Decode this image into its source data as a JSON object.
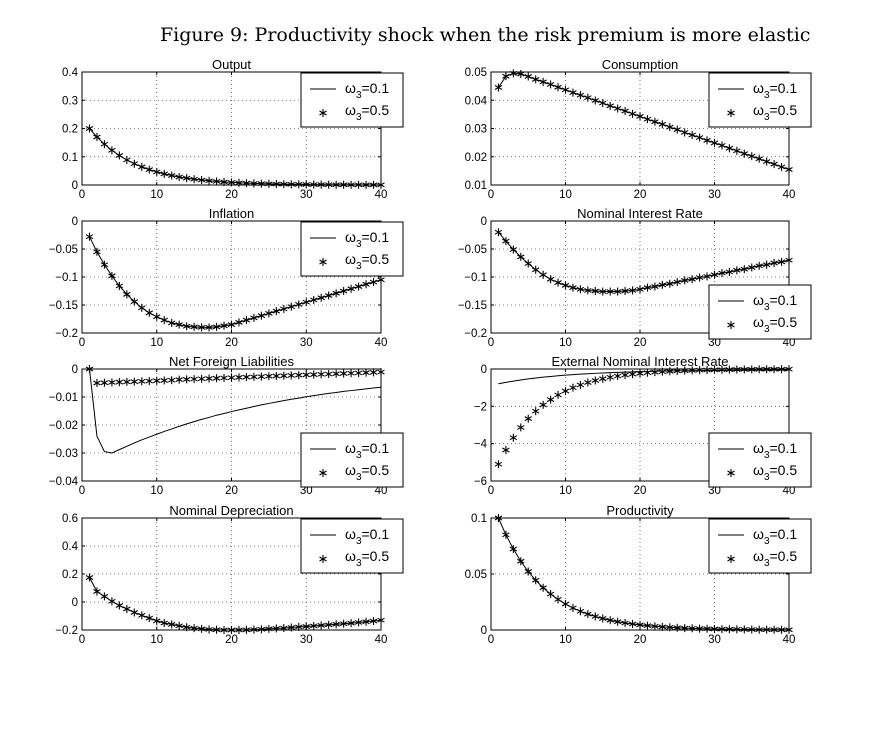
{
  "figure_title": "Figure 9: Productivity shock when the risk premium is more elastic",
  "legend_entries": [
    {
      "greek": "ω",
      "sub": "3",
      "value": "=0.1",
      "style": "line"
    },
    {
      "greek": "ω",
      "sub": "3",
      "value": "=0.5",
      "style": "star"
    }
  ],
  "chart_data": [
    {
      "type": "line",
      "title": "Output",
      "xlim": [
        0,
        40
      ],
      "ylim": [
        0,
        0.4
      ],
      "legend": "top-right",
      "grid": true,
      "xticks": [
        0,
        10,
        20,
        30,
        40
      ],
      "xtick_labels": [
        "0",
        "10",
        "20",
        "30",
        "40"
      ],
      "yticks": [
        0,
        0.1,
        0.2,
        0.3,
        0.4
      ],
      "ytick_labels": [
        "0",
        "0.1",
        "0.2",
        "0.3",
        "0.4"
      ],
      "series": [
        {
          "name": "ω3=0.1",
          "values": [
            0.2,
            0.17,
            0.1445,
            0.1228,
            0.1044,
            0.0887,
            0.0754,
            0.0641,
            0.0545,
            0.0463,
            0.0394,
            0.0335,
            0.0284,
            0.0242,
            0.0206,
            0.0175,
            0.0149,
            0.0126,
            0.0107,
            0.0091,
            0.0078,
            0.0066,
            0.0056,
            0.0048,
            0.004,
            0.0034,
            0.0029,
            0.0025,
            0.0021,
            0.0018,
            0.0015,
            0.0013,
            0.0011,
            0.0009,
            0.0008,
            0.0007,
            0.0006,
            0.0005,
            0.0004,
            0.0004
          ]
        },
        {
          "name": "ω3=0.5",
          "values": [
            0.2,
            0.17,
            0.1445,
            0.1228,
            0.1044,
            0.0887,
            0.0754,
            0.0641,
            0.0545,
            0.0463,
            0.0394,
            0.0335,
            0.0284,
            0.0242,
            0.0206,
            0.0175,
            0.0149,
            0.0126,
            0.0107,
            0.0091,
            0.0078,
            0.0066,
            0.0056,
            0.0048,
            0.004,
            0.0034,
            0.0029,
            0.0025,
            0.0021,
            0.0018,
            0.0015,
            0.0013,
            0.0011,
            0.0009,
            0.0008,
            0.0007,
            0.0006,
            0.0005,
            0.0004,
            0.0004
          ]
        }
      ]
    },
    {
      "type": "line",
      "title": "Consumption",
      "xlim": [
        0,
        40
      ],
      "ylim": [
        0.01,
        0.05
      ],
      "legend": "top-right",
      "grid": true,
      "xticks": [
        0,
        10,
        20,
        30,
        40
      ],
      "xtick_labels": [
        "0",
        "10",
        "20",
        "30",
        "40"
      ],
      "yticks": [
        0.01,
        0.02,
        0.03,
        0.04,
        0.05
      ],
      "ytick_labels": [
        "0.01",
        "0.02",
        "0.03",
        "0.04",
        "0.05"
      ],
      "series": [
        {
          "name": "ω3=0.1",
          "values": [
            0.0445,
            0.0485,
            0.0495,
            0.0493,
            0.0484,
            0.0474,
            0.0465,
            0.0456,
            0.0446,
            0.0437,
            0.0427,
            0.0418,
            0.0409,
            0.0399,
            0.039,
            0.038,
            0.0371,
            0.0362,
            0.0352,
            0.0343,
            0.0333,
            0.0324,
            0.0315,
            0.0305,
            0.0296,
            0.0286,
            0.0277,
            0.0268,
            0.0258,
            0.0249,
            0.024,
            0.023,
            0.0221,
            0.0211,
            0.0202,
            0.0193,
            0.0183,
            0.0174,
            0.0164,
            0.0155
          ]
        },
        {
          "name": "ω3=0.5",
          "values": [
            0.0445,
            0.0485,
            0.0495,
            0.0493,
            0.0484,
            0.0474,
            0.0465,
            0.0456,
            0.0446,
            0.0437,
            0.0427,
            0.0418,
            0.0409,
            0.0399,
            0.039,
            0.038,
            0.0371,
            0.0362,
            0.0352,
            0.0343,
            0.0333,
            0.0324,
            0.0315,
            0.0305,
            0.0296,
            0.0286,
            0.0277,
            0.0268,
            0.0258,
            0.0249,
            0.024,
            0.023,
            0.0221,
            0.0211,
            0.0202,
            0.0193,
            0.0183,
            0.0174,
            0.0164,
            0.0155
          ]
        }
      ]
    },
    {
      "type": "line",
      "title": "Inflation",
      "xlim": [
        0,
        40
      ],
      "ylim": [
        -0.2,
        0
      ],
      "legend": "top-right",
      "grid": true,
      "xticks": [
        0,
        10,
        20,
        30,
        40
      ],
      "xtick_labels": [
        "0",
        "10",
        "20",
        "30",
        "40"
      ],
      "yticks": [
        -0.2,
        -0.15,
        -0.1,
        -0.05,
        0
      ],
      "ytick_labels": [
        "−0.2",
        "−0.15",
        "−0.1",
        "−0.05",
        "0"
      ],
      "series": [
        {
          "name": "ω3=0.1",
          "values": [
            -0.028,
            -0.055,
            -0.078,
            -0.098,
            -0.116,
            -0.131,
            -0.144,
            -0.155,
            -0.164,
            -0.171,
            -0.177,
            -0.182,
            -0.185,
            -0.188,
            -0.189,
            -0.19,
            -0.19,
            -0.189,
            -0.187,
            -0.185,
            -0.181,
            -0.177,
            -0.173,
            -0.169,
            -0.165,
            -0.161,
            -0.157,
            -0.153,
            -0.149,
            -0.145,
            -0.141,
            -0.137,
            -0.133,
            -0.129,
            -0.125,
            -0.121,
            -0.117,
            -0.113,
            -0.109,
            -0.105
          ]
        },
        {
          "name": "ω3=0.5",
          "values": [
            -0.028,
            -0.055,
            -0.078,
            -0.098,
            -0.116,
            -0.131,
            -0.144,
            -0.155,
            -0.164,
            -0.171,
            -0.177,
            -0.182,
            -0.185,
            -0.188,
            -0.189,
            -0.19,
            -0.19,
            -0.189,
            -0.187,
            -0.185,
            -0.181,
            -0.177,
            -0.173,
            -0.169,
            -0.165,
            -0.161,
            -0.157,
            -0.153,
            -0.149,
            -0.145,
            -0.141,
            -0.137,
            -0.133,
            -0.129,
            -0.125,
            -0.121,
            -0.117,
            -0.113,
            -0.109,
            -0.105
          ]
        }
      ]
    },
    {
      "type": "line",
      "title": "Nominal Interest Rate",
      "xlim": [
        0,
        40
      ],
      "ylim": [
        -0.2,
        0
      ],
      "legend": "bottom-right",
      "grid": true,
      "xticks": [
        0,
        10,
        20,
        30,
        40
      ],
      "xtick_labels": [
        "0",
        "10",
        "20",
        "30",
        "40"
      ],
      "yticks": [
        -0.2,
        -0.15,
        -0.1,
        -0.05,
        0
      ],
      "ytick_labels": [
        "−0.2",
        "−0.15",
        "−0.1",
        "−0.05",
        "0"
      ],
      "series": [
        {
          "name": "ω3=0.1",
          "values": [
            -0.02,
            -0.036,
            -0.051,
            -0.064,
            -0.076,
            -0.087,
            -0.096,
            -0.104,
            -0.11,
            -0.115,
            -0.119,
            -0.122,
            -0.124,
            -0.125,
            -0.126,
            -0.126,
            -0.126,
            -0.125,
            -0.124,
            -0.122,
            -0.119,
            -0.117,
            -0.114,
            -0.112,
            -0.109,
            -0.106,
            -0.104,
            -0.101,
            -0.099,
            -0.096,
            -0.093,
            -0.091,
            -0.088,
            -0.086,
            -0.083,
            -0.08,
            -0.078,
            -0.075,
            -0.073,
            -0.07
          ]
        },
        {
          "name": "ω3=0.5",
          "values": [
            -0.02,
            -0.036,
            -0.051,
            -0.064,
            -0.076,
            -0.087,
            -0.096,
            -0.104,
            -0.11,
            -0.115,
            -0.119,
            -0.122,
            -0.124,
            -0.125,
            -0.126,
            -0.126,
            -0.126,
            -0.125,
            -0.124,
            -0.122,
            -0.119,
            -0.117,
            -0.114,
            -0.112,
            -0.109,
            -0.106,
            -0.104,
            -0.101,
            -0.099,
            -0.096,
            -0.093,
            -0.091,
            -0.088,
            -0.086,
            -0.083,
            -0.08,
            -0.078,
            -0.075,
            -0.073,
            -0.07
          ]
        }
      ]
    },
    {
      "type": "line",
      "title": "Net Foreign Liabilities",
      "xlim": [
        0,
        40
      ],
      "ylim": [
        -0.04,
        0
      ],
      "legend": "bottom-right",
      "grid": true,
      "xticks": [
        0,
        10,
        20,
        30,
        40
      ],
      "xtick_labels": [
        "0",
        "10",
        "20",
        "30",
        "40"
      ],
      "yticks": [
        -0.04,
        -0.03,
        -0.02,
        -0.01,
        0
      ],
      "ytick_labels": [
        "−0.04",
        "−0.03",
        "−0.02",
        "−0.01",
        "0"
      ],
      "series": [
        {
          "name": "ω3=0.1",
          "values": [
            0,
            -0.024,
            -0.0295,
            -0.03,
            -0.0288,
            -0.0276,
            -0.0264,
            -0.0253,
            -0.0243,
            -0.0233,
            -0.0223,
            -0.0214,
            -0.0205,
            -0.0196,
            -0.0188,
            -0.018,
            -0.0173,
            -0.0165,
            -0.0159,
            -0.0152,
            -0.0146,
            -0.014,
            -0.0134,
            -0.0128,
            -0.0123,
            -0.0118,
            -0.0113,
            -0.0108,
            -0.0104,
            -0.0099,
            -0.0095,
            -0.0091,
            -0.0087,
            -0.0084,
            -0.008,
            -0.0077,
            -0.0074,
            -0.0071,
            -0.0068,
            -0.0065
          ]
        },
        {
          "name": "ω3=0.5",
          "values": [
            0,
            -0.005,
            -0.0049,
            -0.0048,
            -0.0047,
            -0.0046,
            -0.0045,
            -0.0044,
            -0.0043,
            -0.0042,
            -0.0041,
            -0.004,
            -0.0038,
            -0.0037,
            -0.0036,
            -0.0035,
            -0.0034,
            -0.0033,
            -0.0032,
            -0.0031,
            -0.003,
            -0.0029,
            -0.0028,
            -0.0027,
            -0.0026,
            -0.0025,
            -0.0024,
            -0.0023,
            -0.0022,
            -0.0021,
            -0.002,
            -0.0019,
            -0.0018,
            -0.0017,
            -0.0016,
            -0.0015,
            -0.0014,
            -0.0013,
            -0.0012,
            -0.0011
          ]
        }
      ]
    },
    {
      "type": "line",
      "title": "External Nominal Interest Rate",
      "xlim": [
        0,
        40
      ],
      "ylim": [
        -6,
        0
      ],
      "legend": "bottom-right",
      "grid": true,
      "xticks": [
        0,
        10,
        20,
        30,
        40
      ],
      "xtick_labels": [
        "0",
        "10",
        "20",
        "30",
        "40"
      ],
      "yticks": [
        -6,
        -4,
        -2,
        0
      ],
      "ytick_labels": [
        "−6",
        "−4",
        "−2",
        "0"
      ],
      "series": [
        {
          "name": "ω3=0.1",
          "values": [
            -0.79,
            -0.715,
            -0.648,
            -0.587,
            -0.532,
            -0.483,
            -0.438,
            -0.399,
            -0.363,
            -0.33,
            -0.302,
            -0.276,
            -0.252,
            -0.231,
            -0.212,
            -0.195,
            -0.179,
            -0.165,
            -0.153,
            -0.141,
            -0.132,
            -0.122,
            -0.114,
            -0.107,
            -0.1,
            -0.094,
            -0.089,
            -0.084,
            -0.079,
            -0.075,
            -0.072,
            -0.069,
            -0.066,
            -0.063,
            -0.061,
            -0.059,
            -0.057,
            -0.055,
            -0.054,
            -0.052
          ]
        },
        {
          "name": "ω3=0.5",
          "values": [
            -5.1,
            -4.34,
            -3.68,
            -3.13,
            -2.66,
            -2.26,
            -1.92,
            -1.64,
            -1.39,
            -1.18,
            -1.0,
            -0.853,
            -0.725,
            -0.617,
            -0.524,
            -0.446,
            -0.379,
            -0.322,
            -0.273,
            -0.233,
            -0.198,
            -0.168,
            -0.143,
            -0.121,
            -0.103,
            -0.088,
            -0.074,
            -0.063,
            -0.054,
            -0.046,
            -0.039,
            -0.033,
            -0.028,
            -0.024,
            -0.02,
            -0.017,
            -0.015,
            -0.013,
            -0.011,
            -0.009
          ]
        }
      ]
    },
    {
      "type": "line",
      "title": "Nominal Depreciation",
      "xlim": [
        0,
        40
      ],
      "ylim": [
        -0.2,
        0.6
      ],
      "legend": "top-right",
      "grid": true,
      "xticks": [
        0,
        10,
        20,
        30,
        40
      ],
      "xtick_labels": [
        "0",
        "10",
        "20",
        "30",
        "40"
      ],
      "yticks": [
        -0.2,
        0,
        0.2,
        0.4,
        0.6
      ],
      "ytick_labels": [
        "−0.2",
        "0",
        "0.2",
        "0.4",
        "0.6"
      ],
      "series": [
        {
          "name": "ω3=0.1",
          "values": [
            0.175,
            0.075,
            0.04,
            0.005,
            -0.025,
            -0.05,
            -0.075,
            -0.095,
            -0.115,
            -0.135,
            -0.15,
            -0.16,
            -0.17,
            -0.18,
            -0.187,
            -0.192,
            -0.196,
            -0.198,
            -0.2,
            -0.2,
            -0.2,
            -0.199,
            -0.197,
            -0.195,
            -0.192,
            -0.189,
            -0.186,
            -0.182,
            -0.178,
            -0.175,
            -0.171,
            -0.167,
            -0.163,
            -0.159,
            -0.155,
            -0.151,
            -0.146,
            -0.141,
            -0.136,
            -0.13
          ]
        },
        {
          "name": "ω3=0.5",
          "values": [
            0.175,
            0.075,
            0.04,
            0.005,
            -0.025,
            -0.05,
            -0.075,
            -0.095,
            -0.115,
            -0.135,
            -0.15,
            -0.16,
            -0.17,
            -0.18,
            -0.187,
            -0.192,
            -0.196,
            -0.198,
            -0.2,
            -0.2,
            -0.2,
            -0.199,
            -0.197,
            -0.195,
            -0.192,
            -0.189,
            -0.186,
            -0.182,
            -0.178,
            -0.175,
            -0.171,
            -0.167,
            -0.163,
            -0.159,
            -0.155,
            -0.151,
            -0.146,
            -0.141,
            -0.136,
            -0.13
          ]
        }
      ]
    },
    {
      "type": "line",
      "title": "Productivity",
      "xlim": [
        0,
        40
      ],
      "ylim": [
        0,
        0.1
      ],
      "legend": "top-right",
      "grid": true,
      "xticks": [
        0,
        10,
        20,
        30,
        40
      ],
      "xtick_labels": [
        "0",
        "10",
        "20",
        "30",
        "40"
      ],
      "yticks": [
        0,
        0.05,
        0.1
      ],
      "ytick_labels": [
        "0",
        "0.05",
        "0.1"
      ],
      "series": [
        {
          "name": "ω3=0.1",
          "values": [
            0.1,
            0.085,
            0.0723,
            0.0614,
            0.0522,
            0.0444,
            0.0377,
            0.0321,
            0.0273,
            0.0232,
            0.0197,
            0.0167,
            0.0142,
            0.0121,
            0.0103,
            0.0087,
            0.0074,
            0.0063,
            0.0054,
            0.0046,
            0.0039,
            0.0033,
            0.0028,
            0.0024,
            0.002,
            0.0017,
            0.0015,
            0.0012,
            0.0011,
            0.0009,
            0.0008,
            0.0007,
            0.0006,
            0.0005,
            0.0004,
            0.0003,
            0.0003,
            0.0002,
            0.0002,
            0.0002
          ]
        },
        {
          "name": "ω3=0.5",
          "values": [
            0.1,
            0.085,
            0.0723,
            0.0614,
            0.0522,
            0.0444,
            0.0377,
            0.0321,
            0.0273,
            0.0232,
            0.0197,
            0.0167,
            0.0142,
            0.0121,
            0.0103,
            0.0087,
            0.0074,
            0.0063,
            0.0054,
            0.0046,
            0.0039,
            0.0033,
            0.0028,
            0.0024,
            0.002,
            0.0017,
            0.0015,
            0.0012,
            0.0011,
            0.0009,
            0.0008,
            0.0007,
            0.0006,
            0.0005,
            0.0004,
            0.0003,
            0.0003,
            0.0002,
            0.0002,
            0.0002
          ]
        }
      ]
    }
  ]
}
